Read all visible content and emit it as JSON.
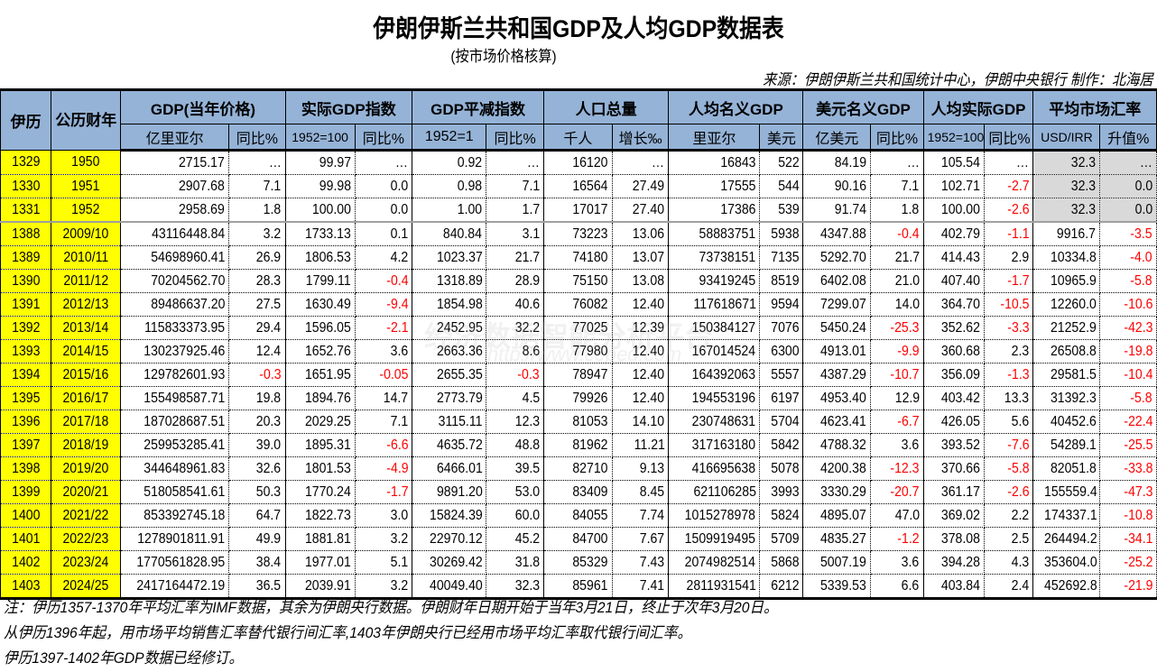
{
  "title": "伊朗伊斯兰共和国GDP及人均GDP数据表",
  "subtitle": "(按市场价格核算)",
  "source": "来源：伊朗伊斯兰共和国统计中心，伊朗中央银行 制作：北海居",
  "watermark": {
    "line1": "经济数据智能分析平台",
    "line2": "http://www.ceped.com"
  },
  "header": {
    "iranian_year": "伊历",
    "gregorian_year": "公历财年",
    "groups": [
      {
        "label": "GDP(当年价格)",
        "sub": [
          "亿里亚尔",
          "同比%"
        ]
      },
      {
        "label": "实际GDP指数",
        "sub": [
          "1952=100",
          "同比%"
        ]
      },
      {
        "label": "GDP平减指数",
        "sub": [
          "1952=1",
          "同比%"
        ]
      },
      {
        "label": "人口总量",
        "sub": [
          "千人",
          "增长‰"
        ]
      },
      {
        "label": "人均名义GDP",
        "sub": [
          "里亚尔",
          "美元"
        ]
      },
      {
        "label": "美元名义GDP",
        "sub": [
          "亿美元",
          "同比%"
        ]
      },
      {
        "label": "人均实际GDP",
        "sub": [
          "1952=100",
          "同比%"
        ]
      },
      {
        "label": "平均市场汇率",
        "sub": [
          "USD/IRR",
          "升值%"
        ]
      }
    ]
  },
  "rows": [
    [
      "1329",
      "1950",
      "2715.17",
      "…",
      "99.97",
      "…",
      "0.92",
      "…",
      "16120",
      "…",
      "16843",
      "522",
      "84.19",
      "…",
      "105.54",
      "…",
      "32.3",
      "…"
    ],
    [
      "1330",
      "1951",
      "2907.68",
      "7.1",
      "99.98",
      "0.0",
      "0.98",
      "7.1",
      "16564",
      "27.49",
      "17555",
      "544",
      "90.16",
      "7.1",
      "102.71",
      "-2.7",
      "32.3",
      "0.0"
    ],
    [
      "1331",
      "1952",
      "2958.69",
      "1.8",
      "100.00",
      "0.0",
      "1.00",
      "1.7",
      "17017",
      "27.40",
      "17386",
      "539",
      "91.74",
      "1.8",
      "100.00",
      "-2.6",
      "32.3",
      "0.0"
    ],
    [
      "1388",
      "2009/10",
      "43116448.84",
      "3.2",
      "1733.13",
      "0.1",
      "840.84",
      "3.1",
      "73223",
      "13.06",
      "58883751",
      "5938",
      "4347.88",
      "-0.4",
      "402.79",
      "-1.1",
      "9916.7",
      "-3.5"
    ],
    [
      "1389",
      "2010/11",
      "54698960.41",
      "26.9",
      "1806.53",
      "4.2",
      "1023.37",
      "21.7",
      "74180",
      "13.07",
      "73738151",
      "7135",
      "5292.70",
      "21.7",
      "414.43",
      "2.9",
      "10334.8",
      "-4.0"
    ],
    [
      "1390",
      "2011/12",
      "70204562.70",
      "28.3",
      "1799.11",
      "-0.4",
      "1318.89",
      "28.9",
      "75150",
      "13.08",
      "93419245",
      "8519",
      "6402.08",
      "21.0",
      "407.40",
      "-1.7",
      "10965.9",
      "-5.8"
    ],
    [
      "1391",
      "2012/13",
      "89486637.20",
      "27.5",
      "1630.49",
      "-9.4",
      "1854.98",
      "40.6",
      "76082",
      "12.40",
      "117618671",
      "9594",
      "7299.07",
      "14.0",
      "364.70",
      "-10.5",
      "12260.0",
      "-10.6"
    ],
    [
      "1392",
      "2013/14",
      "115833373.95",
      "29.4",
      "1596.05",
      "-2.1",
      "2452.95",
      "32.2",
      "77025",
      "12.39",
      "150384127",
      "7076",
      "5450.24",
      "-25.3",
      "352.62",
      "-3.3",
      "21252.9",
      "-42.3"
    ],
    [
      "1393",
      "2014/15",
      "130237925.46",
      "12.4",
      "1652.76",
      "3.6",
      "2663.36",
      "8.6",
      "77980",
      "12.40",
      "167014524",
      "6300",
      "4913.01",
      "-9.9",
      "360.68",
      "2.3",
      "26508.8",
      "-19.8"
    ],
    [
      "1394",
      "2015/16",
      "129782601.93",
      "-0.3",
      "1651.95",
      "-0.05",
      "2655.35",
      "-0.3",
      "78947",
      "12.40",
      "164392063",
      "5557",
      "4387.29",
      "-10.7",
      "356.09",
      "-1.3",
      "29581.5",
      "-10.4"
    ],
    [
      "1395",
      "2016/17",
      "155498587.71",
      "19.8",
      "1894.76",
      "14.7",
      "2773.79",
      "4.5",
      "79926",
      "12.40",
      "194553196",
      "6197",
      "4953.40",
      "12.9",
      "403.42",
      "13.3",
      "31392.3",
      "-5.8"
    ],
    [
      "1396",
      "2017/18",
      "187028687.51",
      "20.3",
      "2029.25",
      "7.1",
      "3115.11",
      "12.3",
      "81053",
      "14.10",
      "230748631",
      "5704",
      "4623.41",
      "-6.7",
      "426.05",
      "5.6",
      "40452.6",
      "-22.4"
    ],
    [
      "1397",
      "2018/19",
      "259953285.41",
      "39.0",
      "1895.31",
      "-6.6",
      "4635.72",
      "48.8",
      "81962",
      "11.21",
      "317163180",
      "5842",
      "4788.32",
      "3.6",
      "393.52",
      "-7.6",
      "54289.1",
      "-25.5"
    ],
    [
      "1398",
      "2019/20",
      "344648961.83",
      "32.6",
      "1801.53",
      "-4.9",
      "6466.01",
      "39.5",
      "82710",
      "9.13",
      "416695638",
      "5078",
      "4200.38",
      "-12.3",
      "370.66",
      "-5.8",
      "82051.8",
      "-33.8"
    ],
    [
      "1399",
      "2020/21",
      "518058541.61",
      "50.3",
      "1770.24",
      "-1.7",
      "9891.20",
      "53.0",
      "83409",
      "8.45",
      "621106285",
      "3993",
      "3330.29",
      "-20.7",
      "361.17",
      "-2.6",
      "155559.4",
      "-47.3"
    ],
    [
      "1400",
      "2021/22",
      "853392745.18",
      "64.7",
      "1822.73",
      "3.0",
      "15824.39",
      "60.0",
      "84055",
      "7.74",
      "1015278978",
      "5824",
      "4895.07",
      "47.0",
      "369.02",
      "2.2",
      "174337.1",
      "-10.8"
    ],
    [
      "1401",
      "2022/23",
      "1278901811.91",
      "49.9",
      "1881.81",
      "3.2",
      "22970.12",
      "45.2",
      "84700",
      "7.67",
      "1509919495",
      "5709",
      "4835.27",
      "-1.2",
      "378.08",
      "2.5",
      "264494.2",
      "-34.1"
    ],
    [
      "1402",
      "2023/24",
      "1770561828.95",
      "38.4",
      "1977.01",
      "5.1",
      "30269.42",
      "31.8",
      "85329",
      "7.43",
      "2074982514",
      "5868",
      "5007.19",
      "3.6",
      "394.28",
      "4.3",
      "353604.0",
      "-25.2"
    ],
    [
      "1403",
      "2024/25",
      "2417164472.19",
      "36.5",
      "2039.91",
      "3.2",
      "40049.40",
      "32.3",
      "85961",
      "7.41",
      "2811931541",
      "6212",
      "5339.53",
      "6.6",
      "403.84",
      "2.4",
      "452692.8",
      "-21.9"
    ]
  ],
  "notes": [
    "注：伊历1357-1370年平均汇率为IMF数据，其余为伊朗央行数据。伊朗财年日期开始于当年3月21日，终止于次年3月20日。",
    "从伊历1396年起，用市场平均销售汇率替代银行间汇率,1403年伊朗央行已经用市场平均汇率取代银行间汇率。",
    "伊历1397-1402年GDP数据已经修订。"
  ],
  "colors": {
    "header_bg": "#95b3d7",
    "year_bg": "#ffff00",
    "negative": "#ff0000",
    "early_rate_bg": "#d9d9d9"
  }
}
